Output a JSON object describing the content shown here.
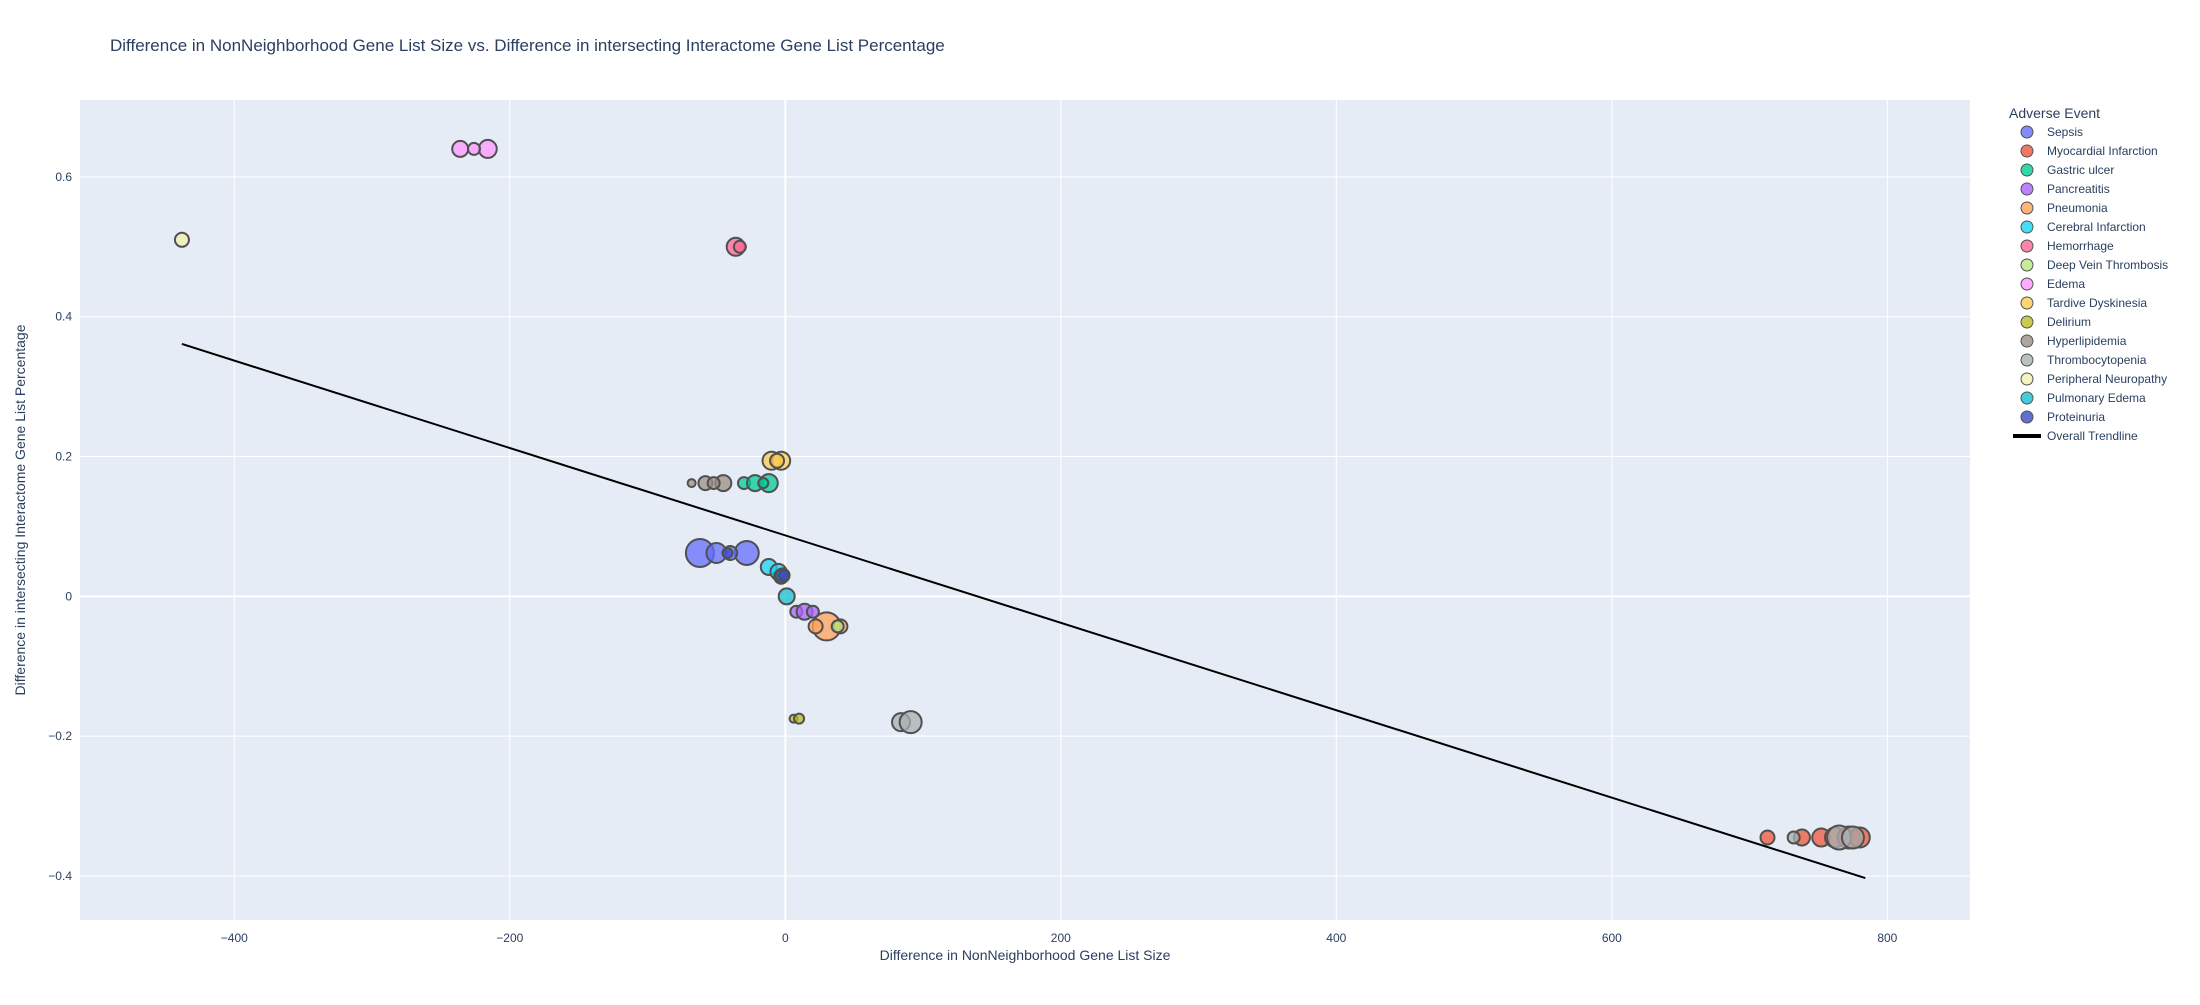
{
  "chart_data": {
    "type": "scatter",
    "title": "Difference in NonNeighborhood Gene List Size vs. Difference in intersecting Interactome Gene List Percentage",
    "xlabel": "Difference in NonNeighborhood Gene List Size",
    "ylabel": "Difference in intersecting Interactome Gene List Percentage",
    "xlim": [
      -512,
      860
    ],
    "ylim": [
      -0.463,
      0.71
    ],
    "x_ticks": [
      -400,
      -200,
      0,
      200,
      400,
      600,
      800
    ],
    "x_tick_labels": [
      "−400",
      "−200",
      "0",
      "200",
      "400",
      "600",
      "800"
    ],
    "y_ticks": [
      -0.4,
      -0.2,
      0,
      0.2,
      0.4,
      0.6
    ],
    "y_tick_labels": [
      "−0.4",
      "−0.2",
      "0",
      "0.2",
      "0.4",
      "0.6"
    ],
    "grid": true,
    "plot_background": "#e5ecf6",
    "legend_title": "Adverse Event",
    "legend_position": "right",
    "marker_outline": "#505050",
    "series": [
      {
        "name": "Sepsis",
        "color": "#636efa",
        "points": [
          {
            "x": -62,
            "y": 0.062,
            "size": 28
          },
          {
            "x": -28,
            "y": 0.062,
            "size": 24
          },
          {
            "x": -50,
            "y": 0.062,
            "size": 20
          },
          {
            "x": -40,
            "y": 0.062,
            "size": 14
          }
        ]
      },
      {
        "name": "Myocardial Infarction",
        "color": "#ef553b",
        "points": [
          {
            "x": 713,
            "y": -0.345,
            "size": 14
          },
          {
            "x": 738,
            "y": -0.345,
            "size": 16
          },
          {
            "x": 752,
            "y": -0.345,
            "size": 18
          },
          {
            "x": 762,
            "y": -0.345,
            "size": 20
          },
          {
            "x": 772,
            "y": -0.345,
            "size": 22
          },
          {
            "x": 780,
            "y": -0.345,
            "size": 20
          }
        ]
      },
      {
        "name": "Gastric ulcer",
        "color": "#00cc96",
        "points": [
          {
            "x": -30,
            "y": 0.162,
            "size": 12
          },
          {
            "x": -22,
            "y": 0.162,
            "size": 16
          },
          {
            "x": -12,
            "y": 0.162,
            "size": 18
          },
          {
            "x": -16,
            "y": 0.162,
            "size": 10
          }
        ]
      },
      {
        "name": "Pancreatitis",
        "color": "#ab63fa",
        "points": [
          {
            "x": 8,
            "y": -0.022,
            "size": 12
          },
          {
            "x": 14,
            "y": -0.022,
            "size": 16
          },
          {
            "x": 20,
            "y": -0.022,
            "size": 12
          }
        ]
      },
      {
        "name": "Pneumonia",
        "color": "#ffa15a",
        "points": [
          {
            "x": 30,
            "y": -0.043,
            "size": 28
          },
          {
            "x": 40,
            "y": -0.043,
            "size": 14
          },
          {
            "x": 22,
            "y": -0.043,
            "size": 14
          }
        ]
      },
      {
        "name": "Cerebral Infarction",
        "color": "#19d3f3",
        "points": [
          {
            "x": -12,
            "y": 0.042,
            "size": 16
          },
          {
            "x": -5,
            "y": 0.035,
            "size": 16
          }
        ]
      },
      {
        "name": "Hemorrhage",
        "color": "#ff6692",
        "points": [
          {
            "x": -36,
            "y": 0.5,
            "size": 18
          },
          {
            "x": -33,
            "y": 0.5,
            "size": 12
          }
        ]
      },
      {
        "name": "Deep Vein Thrombosis",
        "color": "#b6e880",
        "points": [
          {
            "x": 38,
            "y": -0.043,
            "size": 12
          }
        ]
      },
      {
        "name": "Edema",
        "color": "#ff97ff",
        "points": [
          {
            "x": -236,
            "y": 0.64,
            "size": 16
          },
          {
            "x": -216,
            "y": 0.64,
            "size": 18
          },
          {
            "x": -226,
            "y": 0.64,
            "size": 12
          }
        ]
      },
      {
        "name": "Tardive Dyskinesia",
        "color": "#fecb52",
        "points": [
          {
            "x": -10,
            "y": 0.194,
            "size": 18
          },
          {
            "x": -3,
            "y": 0.194,
            "size": 18
          },
          {
            "x": -6,
            "y": 0.194,
            "size": 14
          }
        ]
      },
      {
        "name": "Delirium",
        "color": "#bcbd22",
        "points": [
          {
            "x": 6,
            "y": -0.175,
            "size": 8
          },
          {
            "x": 10,
            "y": -0.175,
            "size": 10
          }
        ]
      },
      {
        "name": "Hyperlipidemia",
        "color": "#9c8f85",
        "points": [
          {
            "x": -68,
            "y": 0.162,
            "size": 8
          },
          {
            "x": -58,
            "y": 0.162,
            "size": 14
          },
          {
            "x": -45,
            "y": 0.162,
            "size": 16
          },
          {
            "x": -52,
            "y": 0.162,
            "size": 12
          }
        ]
      },
      {
        "name": "Thrombocytopenia",
        "color": "#a8b0b2",
        "points": [
          {
            "x": 84,
            "y": -0.18,
            "size": 18
          },
          {
            "x": 91,
            "y": -0.18,
            "size": 22
          },
          {
            "x": 732,
            "y": -0.345,
            "size": 12
          },
          {
            "x": 765,
            "y": -0.345,
            "size": 24
          },
          {
            "x": 775,
            "y": -0.345,
            "size": 22
          }
        ]
      },
      {
        "name": "Peripheral Neuropathy",
        "color": "#f3f0b0",
        "points": [
          {
            "x": -438,
            "y": 0.51,
            "size": 14
          }
        ]
      },
      {
        "name": "Pulmonary Edema",
        "color": "#17becf",
        "points": [
          {
            "x": 1,
            "y": 0.0,
            "size": 16
          },
          {
            "x": -3,
            "y": 0.028,
            "size": 14
          }
        ]
      },
      {
        "name": "Proteinuria",
        "color": "#3a4bc7",
        "points": [
          {
            "x": -2,
            "y": 0.03,
            "size": 14
          },
          {
            "x": -1,
            "y": 0.03,
            "size": 10
          },
          {
            "x": -42,
            "y": 0.062,
            "size": 10
          }
        ]
      }
    ],
    "trendline": {
      "name": "Overall Trendline",
      "color": "#000000",
      "x": [
        -438,
        784
      ],
      "y": [
        0.361,
        -0.403
      ]
    }
  }
}
